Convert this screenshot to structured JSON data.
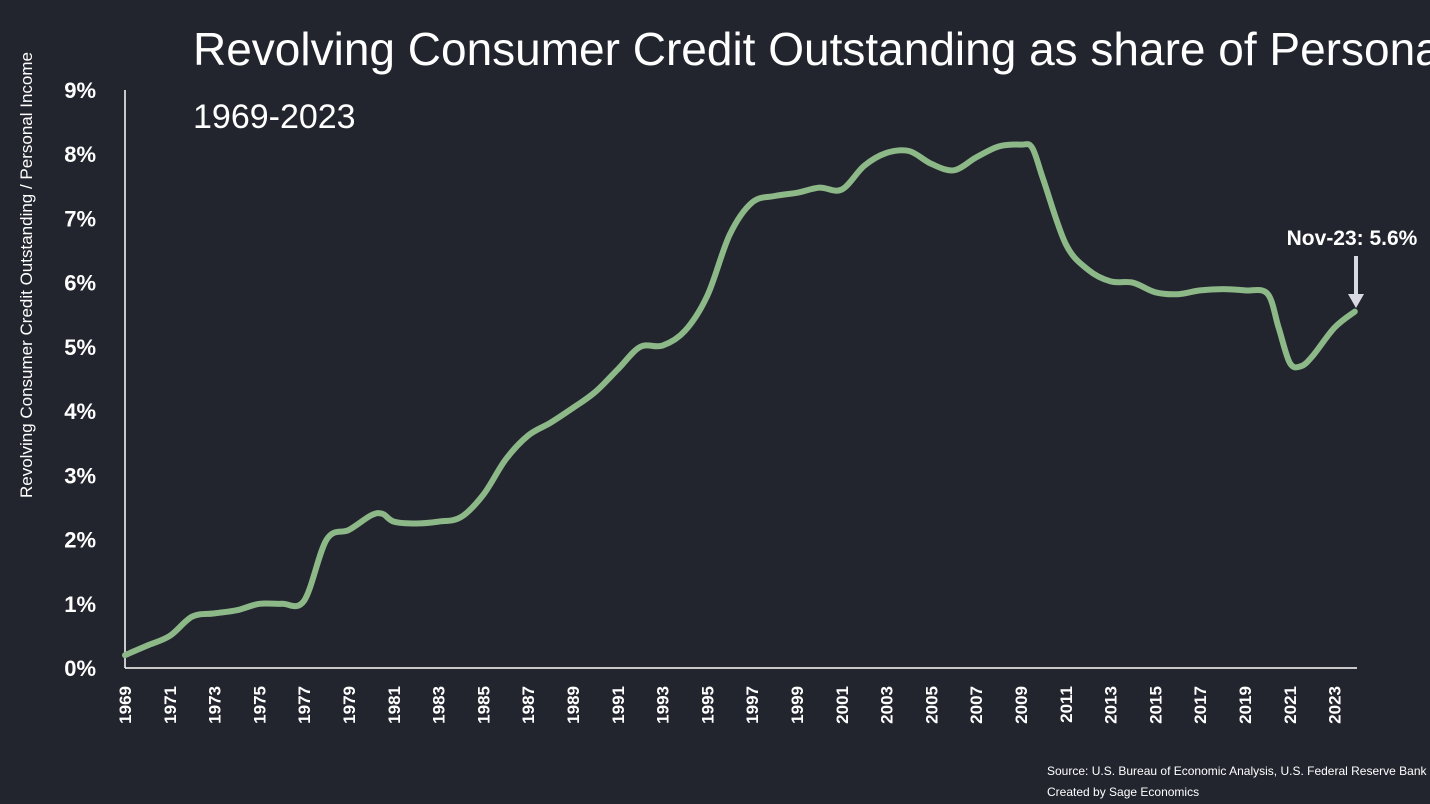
{
  "chart_data": {
    "type": "line",
    "title": "Revolving Consumer Credit Outstanding as share of Personal Income",
    "subtitle": "1969-2023",
    "xlabel": "",
    "ylabel": "Revolving Consumer Credit Outstanding / Personal Income",
    "ylim": [
      0,
      9
    ],
    "xlim": [
      1969,
      2024
    ],
    "y_ticks": [
      "0%",
      "1%",
      "2%",
      "3%",
      "4%",
      "5%",
      "6%",
      "7%",
      "8%",
      "9%"
    ],
    "x_ticks": [
      "1969",
      "1971",
      "1973",
      "1975",
      "1977",
      "1979",
      "1981",
      "1983",
      "1985",
      "1987",
      "1989",
      "1991",
      "1993",
      "1995",
      "1997",
      "1999",
      "2001",
      "2003",
      "2005",
      "2007",
      "2009",
      "2011",
      "2013",
      "2015",
      "2017",
      "2019",
      "2021",
      "2023"
    ],
    "grid": false,
    "series": [
      {
        "name": "Revolving Consumer Credit Outstanding / Personal Income",
        "color": "#8db887",
        "x": [
          1969,
          1970,
          1971,
          1972,
          1973,
          1974,
          1975,
          1976,
          1977,
          1978,
          1979,
          1980,
          1980.5,
          1981,
          1982,
          1983,
          1984,
          1985,
          1986,
          1987,
          1988,
          1989,
          1990,
          1991,
          1992,
          1993,
          1994,
          1995,
          1996,
          1997,
          1998,
          1999,
          2000,
          2001,
          2002,
          2003,
          2004,
          2005,
          2006,
          2007,
          2008,
          2009,
          2009.5,
          2010,
          2011,
          2012,
          2013,
          2014,
          2015,
          2016,
          2017,
          2018,
          2019,
          2020,
          2020.5,
          2021,
          2021.5,
          2022,
          2023,
          2023.9
        ],
        "values": [
          0.2,
          0.35,
          0.5,
          0.8,
          0.85,
          0.9,
          1.0,
          1.0,
          1.05,
          2.0,
          2.15,
          2.38,
          2.4,
          2.28,
          2.25,
          2.28,
          2.35,
          2.7,
          3.25,
          3.62,
          3.82,
          4.05,
          4.3,
          4.65,
          5.0,
          5.02,
          5.25,
          5.8,
          6.75,
          7.25,
          7.35,
          7.4,
          7.48,
          7.45,
          7.82,
          8.02,
          8.05,
          7.85,
          7.75,
          7.95,
          8.12,
          8.15,
          8.1,
          7.6,
          6.6,
          6.2,
          6.02,
          6.0,
          5.85,
          5.82,
          5.88,
          5.9,
          5.88,
          5.83,
          5.3,
          4.75,
          4.7,
          4.85,
          5.3,
          5.55
        ]
      }
    ],
    "annotations": [
      {
        "text": "Nov-23: 5.6%",
        "x": 2023.9,
        "y": 5.55
      }
    ]
  },
  "source": {
    "line1": "Source: U.S. Bureau of Economic Analysis,  U.S. Federal Reserve Bank",
    "line2": "Created by Sage Economics"
  },
  "colors": {
    "background": "#22252e",
    "line": "#8db887",
    "axis": "#ffffff",
    "arrow": "#d9d9e3"
  }
}
